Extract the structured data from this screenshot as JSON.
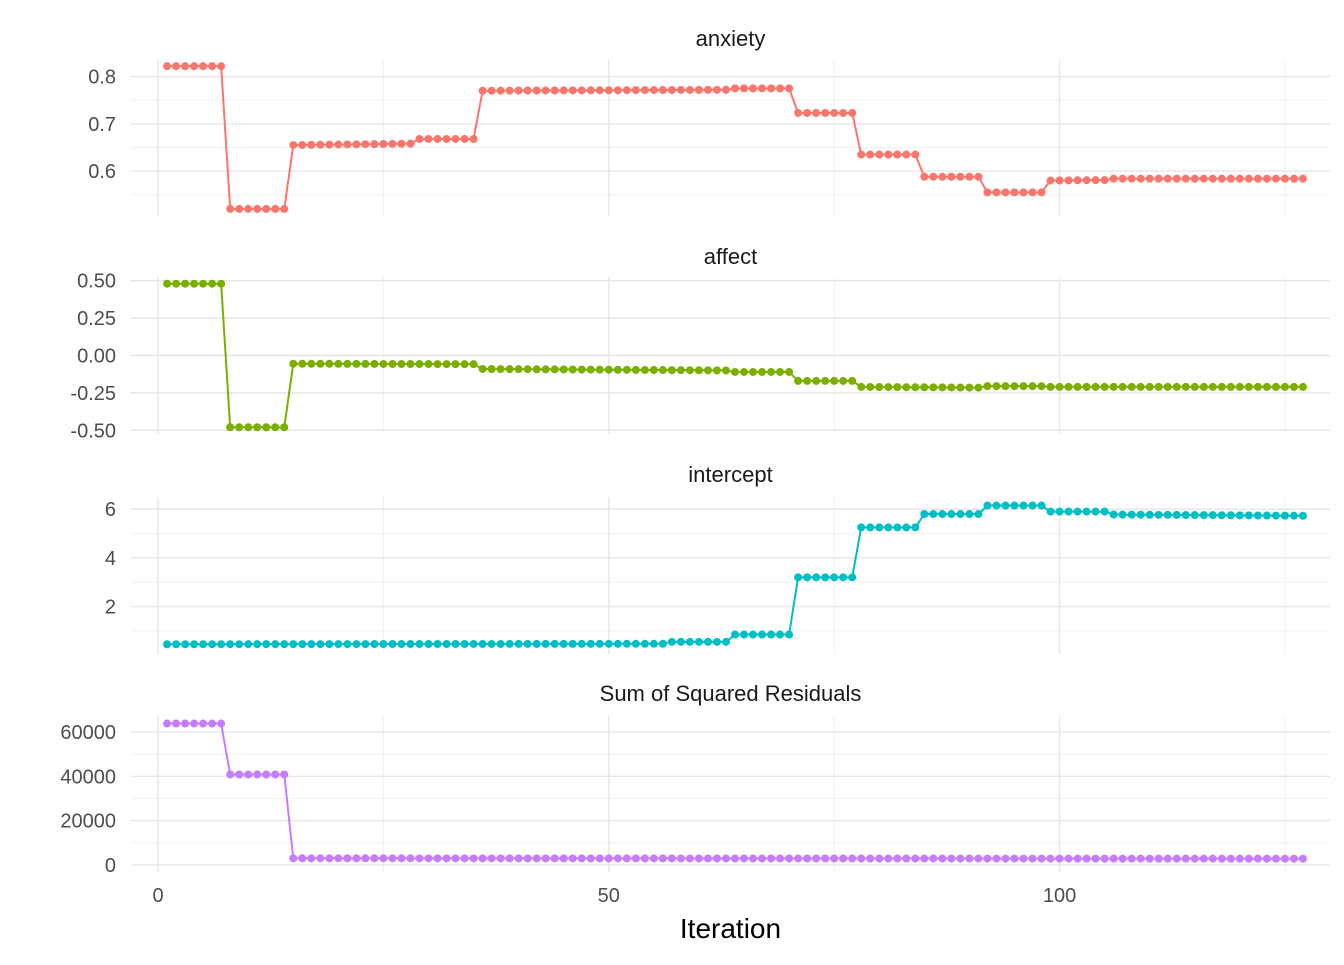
{
  "chart_data": {
    "type": "line",
    "xlabel": "Iteration",
    "xlim": [
      -3,
      130
    ],
    "x_ticks": [
      0,
      50,
      100
    ],
    "x_tick_labels": [
      "0",
      "50",
      "100"
    ],
    "x_minor_ticks": [
      25,
      75,
      125
    ],
    "grid": true,
    "points_marked": true,
    "x": [
      1,
      2,
      3,
      4,
      5,
      6,
      7,
      8,
      9,
      10,
      11,
      12,
      13,
      14,
      15,
      16,
      17,
      18,
      19,
      20,
      21,
      22,
      23,
      24,
      25,
      26,
      27,
      28,
      29,
      30,
      31,
      32,
      33,
      34,
      35,
      36,
      37,
      38,
      39,
      40,
      41,
      42,
      43,
      44,
      45,
      46,
      47,
      48,
      49,
      50,
      51,
      52,
      53,
      54,
      55,
      56,
      57,
      58,
      59,
      60,
      61,
      62,
      63,
      64,
      65,
      66,
      67,
      68,
      69,
      70,
      71,
      72,
      73,
      74,
      75,
      76,
      77,
      78,
      79,
      80,
      81,
      82,
      83,
      84,
      85,
      86,
      87,
      88,
      89,
      90,
      91,
      92,
      93,
      94,
      95,
      96,
      97,
      98,
      99,
      100,
      101,
      102,
      103,
      104,
      105,
      106,
      107,
      108,
      109,
      110,
      111,
      112,
      113,
      114,
      115,
      116,
      117,
      118,
      119,
      120,
      121,
      122,
      123,
      124,
      125,
      126,
      127
    ],
    "panels": [
      {
        "title": "anxiety",
        "color": "#F8766D",
        "ylim": [
          0.505,
          0.835
        ],
        "y_ticks": [
          0.6,
          0.7,
          0.8
        ],
        "y_tick_labels": [
          "0.6",
          "0.7",
          "0.8"
        ],
        "y_minor_ticks": [
          0.55,
          0.65,
          0.75
        ],
        "segments": [
          {
            "from": 1,
            "to": 7,
            "start": 0.822,
            "end": 0.822
          },
          {
            "from": 8,
            "to": 14,
            "start": 0.52,
            "end": 0.52
          },
          {
            "from": 15,
            "to": 28,
            "start": 0.655,
            "end": 0.658
          },
          {
            "from": 29,
            "to": 35,
            "start": 0.668,
            "end": 0.668
          },
          {
            "from": 36,
            "to": 63,
            "start": 0.77,
            "end": 0.772
          },
          {
            "from": 64,
            "to": 70,
            "start": 0.775,
            "end": 0.775
          },
          {
            "from": 71,
            "to": 77,
            "start": 0.723,
            "end": 0.723
          },
          {
            "from": 78,
            "to": 84,
            "start": 0.635,
            "end": 0.635
          },
          {
            "from": 85,
            "to": 91,
            "start": 0.588,
            "end": 0.588
          },
          {
            "from": 92,
            "to": 98,
            "start": 0.555,
            "end": 0.555
          },
          {
            "from": 99,
            "to": 105,
            "start": 0.58,
            "end": 0.581
          },
          {
            "from": 106,
            "to": 127,
            "start": 0.584,
            "end": 0.584
          }
        ]
      },
      {
        "title": "affect",
        "color": "#7CAE00",
        "ylim": [
          -0.525,
          0.525
        ],
        "y_ticks": [
          -0.5,
          -0.25,
          0,
          0.25,
          0.5
        ],
        "y_tick_labels": [
          "-0.50",
          "-0.25",
          "0.00",
          "0.25",
          "0.50"
        ],
        "y_minor_ticks": [],
        "segments": [
          {
            "from": 1,
            "to": 7,
            "start": 0.48,
            "end": 0.48
          },
          {
            "from": 8,
            "to": 14,
            "start": -0.48,
            "end": -0.48
          },
          {
            "from": 15,
            "to": 35,
            "start": -0.055,
            "end": -0.058
          },
          {
            "from": 36,
            "to": 63,
            "start": -0.09,
            "end": -0.1
          },
          {
            "from": 64,
            "to": 70,
            "start": -0.11,
            "end": -0.11
          },
          {
            "from": 71,
            "to": 77,
            "start": -0.17,
            "end": -0.17
          },
          {
            "from": 78,
            "to": 91,
            "start": -0.21,
            "end": -0.215
          },
          {
            "from": 92,
            "to": 98,
            "start": -0.205,
            "end": -0.205
          },
          {
            "from": 99,
            "to": 127,
            "start": -0.21,
            "end": -0.21
          }
        ]
      },
      {
        "title": "intercept",
        "color": "#00BFC4",
        "ylim": [
          0.05,
          6.5
        ],
        "y_ticks": [
          2,
          4,
          6
        ],
        "y_tick_labels": [
          "2",
          "4",
          "6"
        ],
        "y_minor_ticks": [
          1,
          3,
          5
        ],
        "segments": [
          {
            "from": 1,
            "to": 56,
            "start": 0.45,
            "end": 0.47
          },
          {
            "from": 57,
            "to": 63,
            "start": 0.55,
            "end": 0.55
          },
          {
            "from": 64,
            "to": 70,
            "start": 0.85,
            "end": 0.85
          },
          {
            "from": 71,
            "to": 77,
            "start": 3.2,
            "end": 3.2
          },
          {
            "from": 78,
            "to": 84,
            "start": 5.25,
            "end": 5.25
          },
          {
            "from": 85,
            "to": 91,
            "start": 5.8,
            "end": 5.8
          },
          {
            "from": 92,
            "to": 98,
            "start": 6.15,
            "end": 6.15
          },
          {
            "from": 99,
            "to": 105,
            "start": 5.9,
            "end": 5.9
          },
          {
            "from": 106,
            "to": 127,
            "start": 5.78,
            "end": 5.73
          }
        ]
      },
      {
        "title": "Sum of Squared Residuals",
        "color": "#C77CFF",
        "ylim": [
          -3200,
          67200
        ],
        "y_ticks": [
          0,
          20000,
          40000,
          60000
        ],
        "y_tick_labels": [
          "0",
          "20000",
          "40000",
          "60000"
        ],
        "y_minor_ticks": [
          10000,
          30000,
          50000
        ],
        "segments": [
          {
            "from": 1,
            "to": 7,
            "start": 63800,
            "end": 63800
          },
          {
            "from": 8,
            "to": 14,
            "start": 40800,
            "end": 40800
          },
          {
            "from": 15,
            "to": 127,
            "start": 3000,
            "end": 2800
          }
        ]
      }
    ]
  }
}
